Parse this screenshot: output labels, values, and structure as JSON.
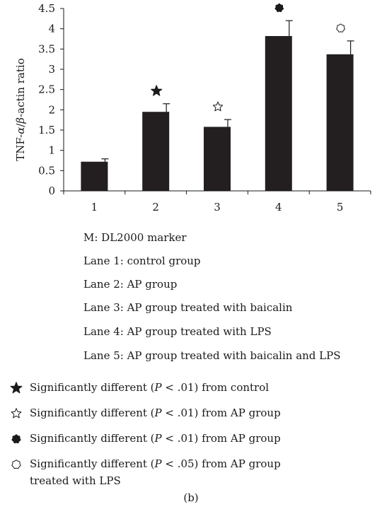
{
  "chart_data": {
    "type": "bar",
    "categories": [
      "1",
      "2",
      "3",
      "4",
      "5"
    ],
    "values": [
      0.72,
      1.95,
      1.58,
      3.82,
      3.37
    ],
    "errors": [
      0.07,
      0.2,
      0.18,
      0.38,
      0.33
    ],
    "markers": [
      "",
      "filled-star",
      "open-star",
      "filled-heptagon",
      "open-heptagon"
    ],
    "ylabel_prefix": "TNF-",
    "ylabel_alpha": "α",
    "ylabel_sep": "/",
    "ylabel_beta": "β",
    "ylabel_suffix": "-actin ratio",
    "yticks": [
      "0",
      "0.5",
      "1",
      "1.5",
      "2",
      "2.5",
      "3",
      "3.5",
      "4",
      "4.5"
    ],
    "ylim": [
      0,
      4.5
    ],
    "bar_color": "#231f20"
  },
  "lanes": [
    "M: DL2000 marker",
    "Lane 1: control group",
    "Lane 2: AP group",
    "Lane 3: AP group treated with baicalin",
    "Lane 4: AP group treated with LPS",
    "Lane 5: AP group treated with baicalin and LPS"
  ],
  "significance": [
    {
      "icon": "filled-star",
      "pre": "Significantly different (",
      "p": "P",
      "post": " < .01) from control",
      "line2": ""
    },
    {
      "icon": "open-star",
      "pre": "Significantly different (",
      "p": "P",
      "post": " < .01) from AP group",
      "line2": ""
    },
    {
      "icon": "filled-heptagon",
      "pre": "Significantly different (",
      "p": "P",
      "post": " < .01) from AP group",
      "line2": ""
    },
    {
      "icon": "open-heptagon",
      "pre": "Significantly different (",
      "p": "P",
      "post": " < .05) from AP group",
      "line2": "treated with LPS"
    }
  ],
  "caption": "(b)"
}
